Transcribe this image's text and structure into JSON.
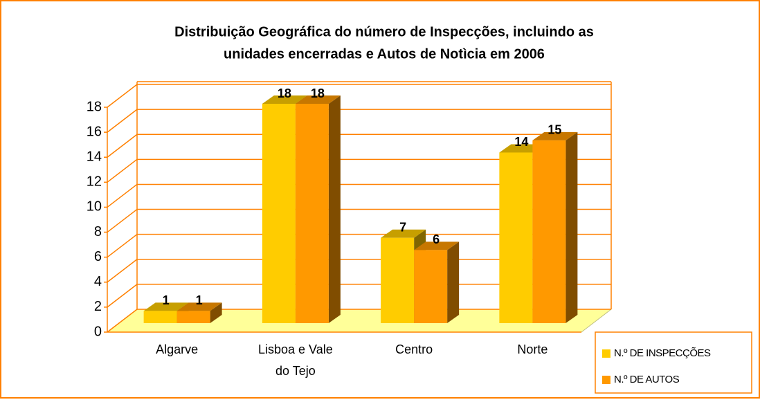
{
  "chart_data": {
    "type": "bar3d",
    "title": [
      "Distribuição Geográfica do número de Inspecções, incluindo as",
      "unidades encerradas e Autos de Notìcia em 2006"
    ],
    "categories": [
      [
        "Algarve"
      ],
      [
        "Lisboa e Vale",
        "do Tejo"
      ],
      [
        "Centro"
      ],
      [
        "Norte"
      ]
    ],
    "series": [
      {
        "name": "N.º DE INSPECÇÕES",
        "color": "#ffcc00",
        "values": [
          1,
          18,
          7,
          14
        ]
      },
      {
        "name": "N.º DE AUTOS",
        "color": "#ff9900",
        "values": [
          1,
          18,
          6,
          15
        ]
      }
    ],
    "ylim": [
      0,
      18
    ],
    "yticks": [
      0,
      2,
      4,
      6,
      8,
      10,
      12,
      14,
      16,
      18
    ],
    "grid": true,
    "legend": "bottom-right"
  }
}
